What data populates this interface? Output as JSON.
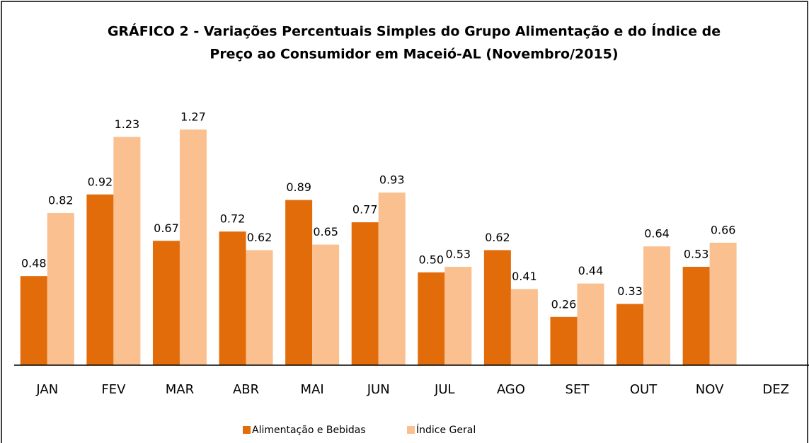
{
  "chart_data": {
    "type": "bar",
    "title": "GRÁFICO 2 - Variações Percentuais Simples do Grupo Alimentação e do Índice de",
    "subtitle": "Preço ao Consumidor em Maceió-AL (Novembro/2015)",
    "categories": [
      "JAN",
      "FEV",
      "MAR",
      "ABR",
      "MAI",
      "JUN",
      "JUL",
      "AGO",
      "SET",
      "OUT",
      "NOV",
      "DEZ"
    ],
    "series": [
      {
        "name": "Alimentação e Bebidas",
        "color": "#e36c0a",
        "values": [
          0.48,
          0.92,
          0.67,
          0.72,
          0.89,
          0.77,
          0.5,
          0.62,
          0.26,
          0.33,
          0.53,
          null
        ],
        "value_labels": [
          "0.48",
          "0.92",
          "0.67",
          "0.72",
          "0.89",
          "0.77",
          "0.50",
          "0.62",
          "0.26",
          "0.33",
          "0.53",
          null
        ]
      },
      {
        "name": "Índice Geral",
        "color": "#fac090",
        "values": [
          0.82,
          1.23,
          1.27,
          0.62,
          0.65,
          0.93,
          0.53,
          0.41,
          0.44,
          0.64,
          0.66,
          null
        ],
        "value_labels": [
          "0.82",
          "1.23",
          "1.27",
          "0.62",
          "0.65",
          "0.93",
          "0.53",
          "0.41",
          "0.44",
          "0.64",
          "0.66",
          null
        ]
      }
    ],
    "legend": "bottom"
  }
}
